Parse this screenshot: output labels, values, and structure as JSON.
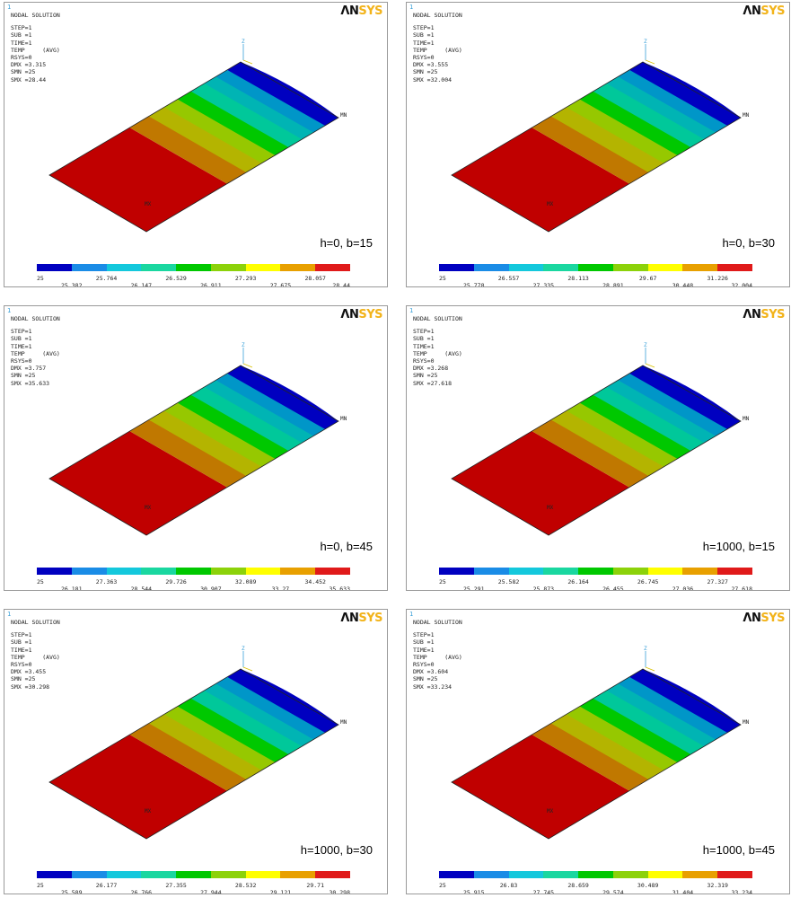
{
  "common": {
    "window_number": "1",
    "header": {
      "title": "NODAL SOLUTION",
      "step": "STEP=1",
      "sub": "SUB =1",
      "time": "TIME=1",
      "temp": "TEMP     (AVG)",
      "rsys": "RSYS=0"
    },
    "logo": {
      "part1": "ΛN",
      "part2": "SYS"
    },
    "axis_label": "Z",
    "min_label": "MN",
    "max_label": "MX",
    "colormap": [
      "#0000c0",
      "#1a8ce6",
      "#14c8dc",
      "#1ad7a0",
      "#00c800",
      "#8cd20a",
      "#ffff00",
      "#e8a000",
      "#e01a1a"
    ],
    "panel_bg": "#ffffff",
    "contour_colors": [
      "#c00000",
      "#c07800",
      "#b4b400",
      "#96c800",
      "#00c800",
      "#00c89a",
      "#00b4b4",
      "#0096c8",
      "#0000c0"
    ]
  },
  "panels": [
    {
      "caption": "h=0, b=15",
      "dmx": "DMX =3.315",
      "smn": "SMN =25",
      "smx": "SMX =28.44",
      "legend_labels": [
        "25",
        "25.382",
        "25.764",
        "26.147",
        "26.529",
        "26.911",
        "27.293",
        "27.675",
        "28.057",
        "28.44"
      ]
    },
    {
      "caption": "h=0, b=30",
      "dmx": "DMX =3.555",
      "smn": "SMN =25",
      "smx": "SMX =32.004",
      "legend_labels": [
        "25",
        "25.778",
        "26.557",
        "27.335",
        "28.113",
        "28.891",
        "29.67",
        "30.448",
        "31.226",
        "32.004"
      ]
    },
    {
      "caption": "h=0, b=45",
      "dmx": "DMX =3.757",
      "smn": "SMN =25",
      "smx": "SMX =35.633",
      "legend_labels": [
        "25",
        "26.181",
        "27.363",
        "28.544",
        "29.726",
        "30.907",
        "32.089",
        "33.27",
        "34.452",
        "35.633"
      ]
    },
    {
      "caption": "h=1000, b=15",
      "dmx": "DMX =3.268",
      "smn": "SMN =25",
      "smx": "SMX =27.618",
      "legend_labels": [
        "25",
        "25.291",
        "25.582",
        "25.873",
        "26.164",
        "26.455",
        "26.745",
        "27.036",
        "27.327",
        "27.618"
      ]
    },
    {
      "caption": "h=1000, b=30",
      "dmx": "DMX =3.455",
      "smn": "SMN =25",
      "smx": "SMX =30.298",
      "legend_labels": [
        "25",
        "25.589",
        "26.177",
        "26.766",
        "27.355",
        "27.944",
        "28.532",
        "29.121",
        "29.71",
        "30.298"
      ]
    },
    {
      "caption": "h=1000, b=45",
      "dmx": "DMX =3.604",
      "smn": "SMN =25",
      "smx": "SMX =33.234",
      "legend_labels": [
        "25",
        "25.915",
        "26.83",
        "27.745",
        "28.659",
        "29.574",
        "30.489",
        "31.404",
        "32.319",
        "33.234"
      ]
    }
  ]
}
